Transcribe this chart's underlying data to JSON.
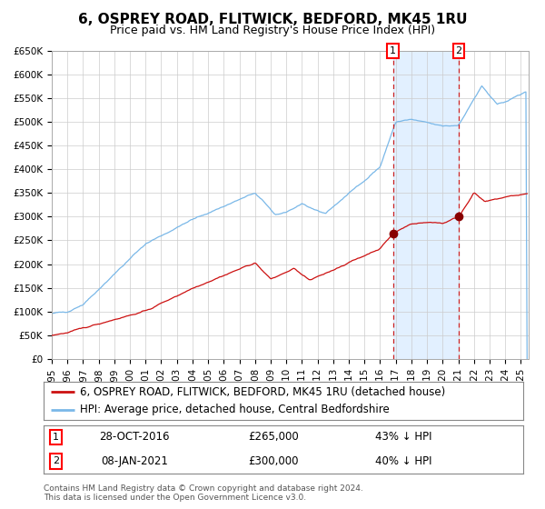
{
  "title": "6, OSPREY ROAD, FLITWICK, BEDFORD, MK45 1RU",
  "subtitle": "Price paid vs. HM Land Registry's House Price Index (HPI)",
  "ylim": [
    0,
    650000
  ],
  "xlim_start": 1995.0,
  "xlim_end": 2025.5,
  "yticks": [
    0,
    50000,
    100000,
    150000,
    200000,
    250000,
    300000,
    350000,
    400000,
    450000,
    500000,
    550000,
    600000,
    650000
  ],
  "ytick_labels": [
    "£0",
    "£50K",
    "£100K",
    "£150K",
    "£200K",
    "£250K",
    "£300K",
    "£350K",
    "£400K",
    "£450K",
    "£500K",
    "£550K",
    "£600K",
    "£650K"
  ],
  "xticks": [
    1995,
    1996,
    1997,
    1998,
    1999,
    2000,
    2001,
    2002,
    2003,
    2004,
    2005,
    2006,
    2007,
    2008,
    2009,
    2010,
    2011,
    2012,
    2013,
    2014,
    2015,
    2016,
    2017,
    2018,
    2019,
    2020,
    2021,
    2022,
    2023,
    2024,
    2025
  ],
  "hpi_color": "#7ab8e8",
  "price_color": "#cc1111",
  "marker_color": "#880000",
  "vline_color": "#cc2222",
  "bg_color": "#ffffff",
  "plot_bg_color": "#ffffff",
  "shade_color": "#ddeeff",
  "grid_color": "#cccccc",
  "title_fontsize": 11,
  "subtitle_fontsize": 9,
  "tick_fontsize": 7.5,
  "legend_fontsize": 8.5,
  "note_fontsize": 6.5,
  "sale1_x": 2016.83,
  "sale1_y": 265000,
  "sale1_label": "1",
  "sale1_date": "28-OCT-2016",
  "sale1_price": "£265,000",
  "sale1_pct": "43% ↓ HPI",
  "sale2_x": 2021.02,
  "sale2_y": 300000,
  "sale2_label": "2",
  "sale2_date": "08-JAN-2021",
  "sale2_price": "£300,000",
  "sale2_pct": "40% ↓ HPI",
  "legend1": "6, OSPREY ROAD, FLITWICK, BEDFORD, MK45 1RU (detached house)",
  "legend2": "HPI: Average price, detached house, Central Bedfordshire",
  "footnote1": "Contains HM Land Registry data © Crown copyright and database right 2024.",
  "footnote2": "This data is licensed under the Open Government Licence v3.0."
}
